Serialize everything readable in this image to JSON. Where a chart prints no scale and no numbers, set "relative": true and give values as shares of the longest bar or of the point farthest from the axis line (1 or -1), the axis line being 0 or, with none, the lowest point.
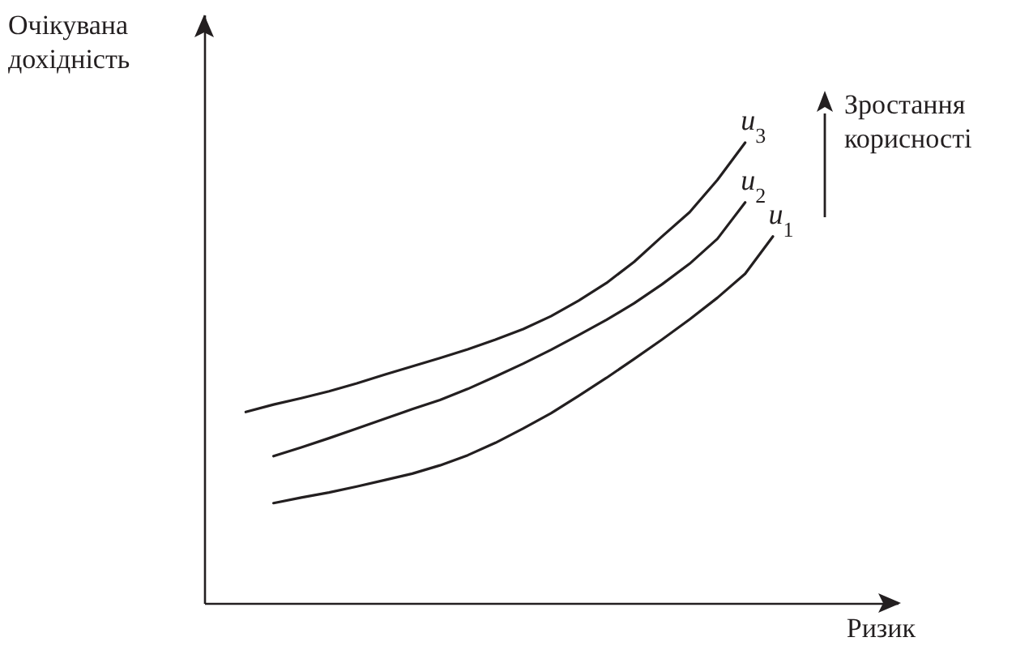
{
  "chart_data": {
    "type": "line",
    "relative": true,
    "xlabel": "Ризик",
    "ylabel": "Очікувана дохідність",
    "annotations": [
      "Зростання корисності"
    ],
    "legend": false,
    "categories": [
      null,
      null,
      null,
      null,
      null,
      null,
      null,
      null,
      null,
      null,
      null,
      null,
      null,
      null,
      null,
      null,
      null,
      null,
      null,
      null,
      null,
      null,
      null,
      null,
      null
    ],
    "series": [
      {
        "name": "u$_{1}$",
        "color": "#231f20",
        "values": [
          null,
          null,
          0.217,
          0.229,
          0.24,
          0.253,
          0.267,
          0.281,
          0.299,
          0.321,
          0.348,
          0.379,
          0.412,
          0.45,
          0.489,
          0.53,
          0.572,
          0.616,
          0.663,
          0.715,
          0.796,
          null,
          null,
          null,
          null
        ]
      },
      {
        "name": "u$_{2}$",
        "color": "#231f20",
        "values": [
          null,
          null,
          0.319,
          0.338,
          0.358,
          0.379,
          0.4,
          0.421,
          0.441,
          0.465,
          0.492,
          0.52,
          0.55,
          0.582,
          0.615,
          0.651,
          0.692,
          0.737,
          0.791,
          0.87,
          null,
          null,
          null,
          null,
          null
        ]
      },
      {
        "name": "u$_{3}$",
        "color": "#231f20",
        "values": [
          null,
          0.415,
          0.431,
          0.445,
          0.46,
          0.477,
          0.496,
          0.514,
          0.532,
          0.551,
          0.572,
          0.595,
          0.623,
          0.657,
          0.695,
          0.741,
          0.796,
          0.849,
          0.919,
          1,
          null,
          null,
          null,
          null,
          null
        ]
      }
    ]
  }
}
